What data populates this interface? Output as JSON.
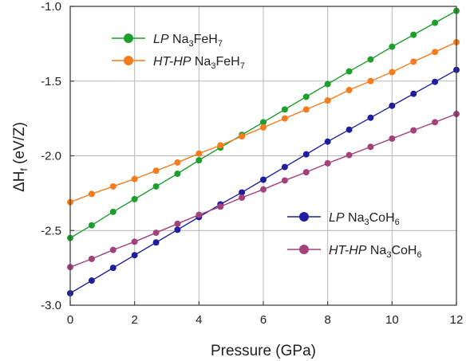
{
  "chart_data": {
    "type": "line",
    "xlabel": "Pressure (GPa)",
    "ylabel": {
      "main": "ΔH",
      "sub": "f",
      "rest": " (eV/Z)"
    },
    "xlim": [
      0,
      12
    ],
    "ylim": [
      -3.0,
      -1.0
    ],
    "xticks": [
      0,
      2,
      4,
      6,
      8,
      10,
      12
    ],
    "yticks": [
      -3.0,
      -2.5,
      -2.0,
      -1.5,
      -1.0
    ],
    "ytick_labels": [
      "-3.0",
      "-2.5",
      "-2.0",
      "-1.5",
      "-1.0"
    ],
    "grid": true,
    "x": [
      0,
      0.667,
      1.333,
      2,
      2.667,
      3.333,
      4,
      4.667,
      5.333,
      6,
      6.667,
      7.333,
      8,
      8.667,
      9.333,
      10,
      10.667,
      11.333,
      12
    ],
    "series": [
      {
        "key": "lp_fe",
        "legend_group": "top",
        "label": [
          {
            "t": "LP",
            "style": "italic"
          },
          {
            "t": " Na"
          },
          {
            "t": "3",
            "sub": true
          },
          {
            "t": "FeH"
          },
          {
            "t": "7",
            "sub": true
          }
        ],
        "color": "#1e9e2c",
        "values": [
          -2.55,
          -2.465,
          -2.375,
          -2.29,
          -2.205,
          -2.12,
          -2.03,
          -1.945,
          -1.86,
          -1.775,
          -1.69,
          -1.605,
          -1.52,
          -1.435,
          -1.355,
          -1.27,
          -1.19,
          -1.11,
          -1.03
        ]
      },
      {
        "key": "hthp_fe",
        "legend_group": "top",
        "label": [
          {
            "t": "HT-HP",
            "style": "italic"
          },
          {
            "t": " Na"
          },
          {
            "t": "3",
            "sub": true
          },
          {
            "t": "FeH"
          },
          {
            "t": "7",
            "sub": true
          }
        ],
        "color": "#f47c1e",
        "values": [
          -2.31,
          -2.255,
          -2.205,
          -2.155,
          -2.1,
          -2.045,
          -1.985,
          -1.93,
          -1.87,
          -1.81,
          -1.75,
          -1.69,
          -1.63,
          -1.56,
          -1.5,
          -1.44,
          -1.37,
          -1.305,
          -1.24
        ]
      },
      {
        "key": "lp_co",
        "legend_group": "bottom",
        "label": [
          {
            "t": "LP",
            "style": "italic"
          },
          {
            "t": " Na"
          },
          {
            "t": "3",
            "sub": true
          },
          {
            "t": "CoH"
          },
          {
            "t": "6",
            "sub": true
          }
        ],
        "color": "#1f1f9e",
        "values": [
          -2.92,
          -2.835,
          -2.75,
          -2.665,
          -2.58,
          -2.495,
          -2.41,
          -2.325,
          -2.245,
          -2.16,
          -2.075,
          -1.99,
          -1.905,
          -1.825,
          -1.745,
          -1.665,
          -1.585,
          -1.505,
          -1.425
        ]
      },
      {
        "key": "hthp_co",
        "legend_group": "bottom",
        "label": [
          {
            "t": "HT-HP",
            "style": "italic"
          },
          {
            "t": " Na"
          },
          {
            "t": "3",
            "sub": true
          },
          {
            "t": "CoH"
          },
          {
            "t": "6",
            "sub": true
          }
        ],
        "color": "#a3417a",
        "values": [
          -2.745,
          -2.69,
          -2.63,
          -2.575,
          -2.515,
          -2.455,
          -2.395,
          -2.34,
          -2.28,
          -2.225,
          -2.165,
          -2.11,
          -2.05,
          -1.995,
          -1.94,
          -1.885,
          -1.83,
          -1.775,
          -1.72
        ]
      }
    ]
  }
}
